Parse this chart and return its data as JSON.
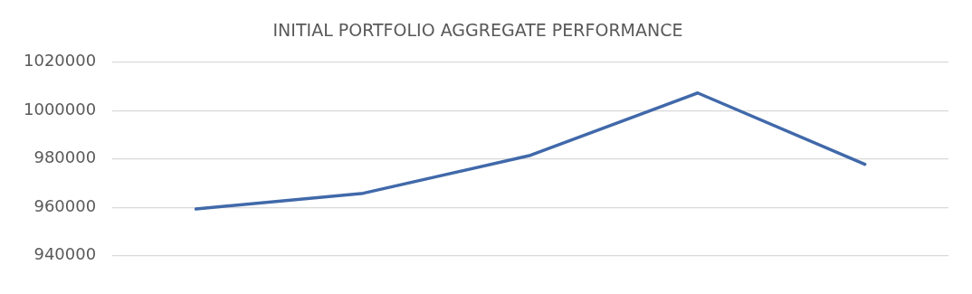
{
  "chart_data": {
    "type": "line",
    "title": "INITIAL PORTFOLIO AGGREGATE PERFORMANCE",
    "categories": [
      null,
      null,
      null,
      null,
      null
    ],
    "series": [
      {
        "color": "#4169aa",
        "values": [
          959300,
          965800,
          981500,
          1007300,
          977800
        ]
      }
    ],
    "ylim": [
      940000,
      1020000
    ],
    "yticks": [
      940000,
      960000,
      980000,
      1000000,
      1020000
    ],
    "grid": "y",
    "legend": false,
    "marker": "none",
    "line_style": "solid"
  }
}
